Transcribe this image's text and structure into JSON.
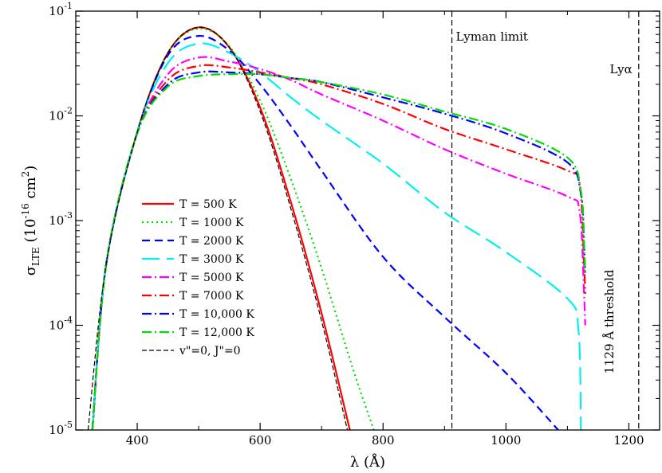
{
  "chart_data": {
    "type": "line",
    "title": "",
    "xlabel": "λ (Å)",
    "ylabel": "σ LTE (10^-16 cm^2)",
    "xlim": [
      300,
      1250
    ],
    "ylim": [
      1e-05,
      0.1
    ],
    "yscale": "log",
    "grid": false,
    "x_ticks": [
      400,
      600,
      800,
      1000,
      1200
    ],
    "x_tick_labels": [
      "400",
      "600",
      "800",
      "1000",
      "1200"
    ],
    "y_ticks": [
      1e-05,
      0.0001,
      0.001,
      0.01,
      0.1
    ],
    "y_tick_labels": [
      {
        "base": "10",
        "exp": "-5"
      },
      {
        "base": "10",
        "exp": "-4"
      },
      {
        "base": "10",
        "exp": "-3"
      },
      {
        "base": "10",
        "exp": "-2"
      },
      {
        "base": "10",
        "exp": "-1"
      }
    ],
    "legend_position": "center-left",
    "reference_lines": [
      {
        "x": 912,
        "label": "Lyman limit"
      },
      {
        "x": 1216,
        "label": "Lyα"
      }
    ],
    "annotations": [
      {
        "text": "1129 Å threshold",
        "x": 1129
      }
    ],
    "series": [
      {
        "name": "T = 500 K",
        "color": "#ff0000",
        "dash": "solid",
        "x": [
          327,
          350,
          400,
          450,
          500,
          550,
          600,
          650,
          700,
          746
        ],
        "y": [
          1e-05,
          0.0004,
          0.007,
          0.04,
          0.07,
          0.045,
          0.012,
          0.0015,
          0.00013,
          1e-05
        ]
      },
      {
        "name": "T = 1000 K",
        "color": "#00dd00",
        "dash": "dot",
        "x": [
          327,
          350,
          400,
          450,
          500,
          550,
          600,
          650,
          700,
          750,
          785
        ],
        "y": [
          1e-05,
          0.0004,
          0.007,
          0.04,
          0.068,
          0.046,
          0.014,
          0.0025,
          0.00035,
          4e-05,
          1e-05
        ]
      },
      {
        "name": "T = 2000 K",
        "color": "#0000ff",
        "dash": "dash",
        "x": [
          327,
          350,
          400,
          450,
          500,
          550,
          600,
          650,
          700,
          800,
          900,
          1000,
          1085
        ],
        "y": [
          1e-05,
          0.0004,
          0.007,
          0.038,
          0.058,
          0.042,
          0.02,
          0.008,
          0.003,
          0.00045,
          0.00012,
          3.5e-05,
          1e-05
        ]
      },
      {
        "name": "T = 3000 K",
        "color": "#00f0f0",
        "dash": "longdash",
        "x": [
          327,
          350,
          400,
          450,
          500,
          550,
          600,
          650,
          700,
          800,
          900,
          1000,
          1100,
          1118,
          1122
        ],
        "y": [
          1e-05,
          0.0004,
          0.007,
          0.032,
          0.049,
          0.04,
          0.026,
          0.015,
          0.009,
          0.0035,
          0.0012,
          0.0005,
          0.00018,
          9e-05,
          1e-05
        ]
      },
      {
        "name": "T = 5000 K",
        "color": "#ff00ff",
        "dash": "dashdot",
        "x": [
          327,
          350,
          400,
          450,
          500,
          550,
          600,
          650,
          700,
          800,
          900,
          1000,
          1100,
          1120,
          1127,
          1129
        ],
        "y": [
          1e-05,
          0.0004,
          0.0068,
          0.025,
          0.036,
          0.033,
          0.028,
          0.022,
          0.016,
          0.009,
          0.0048,
          0.0028,
          0.0017,
          0.0012,
          0.0002,
          0.0001
        ]
      },
      {
        "name": "T = 7000 K",
        "color": "#ff0000",
        "dash": "dashdot",
        "x": [
          327,
          350,
          400,
          450,
          500,
          550,
          600,
          650,
          700,
          800,
          900,
          1000,
          1100,
          1120,
          1127,
          1129
        ],
        "y": [
          1e-05,
          0.0004,
          0.0068,
          0.022,
          0.03,
          0.029,
          0.026,
          0.023,
          0.02,
          0.013,
          0.0075,
          0.0048,
          0.003,
          0.0022,
          0.0004,
          0.0002
        ]
      },
      {
        "name": "T = 10,000 K",
        "color": "#0000ff",
        "dash": "dashdot",
        "x": [
          327,
          350,
          400,
          450,
          500,
          550,
          600,
          650,
          700,
          800,
          900,
          1000,
          1100,
          1122,
          1127,
          1129
        ],
        "y": [
          1e-05,
          0.0004,
          0.0068,
          0.02,
          0.026,
          0.026,
          0.025,
          0.023,
          0.021,
          0.015,
          0.0105,
          0.0068,
          0.0036,
          0.0018,
          0.0006,
          0.0003
        ]
      },
      {
        "name": "T = 12,000 K",
        "color": "#00dd00",
        "dash": "dashdot",
        "x": [
          327,
          350,
          400,
          450,
          500,
          550,
          600,
          650,
          700,
          800,
          900,
          1000,
          1100,
          1122,
          1127,
          1129
        ],
        "y": [
          1e-05,
          0.0004,
          0.0068,
          0.019,
          0.024,
          0.025,
          0.025,
          0.023,
          0.021,
          0.016,
          0.011,
          0.0075,
          0.004,
          0.0019,
          0.0006,
          0.0003
        ]
      },
      {
        "name": "v\"=0, J\"=0",
        "color": "#000000",
        "dash": "shortdash",
        "x": [
          320,
          350,
          400,
          450,
          500,
          550,
          600,
          650,
          700,
          742
        ],
        "y": [
          1e-05,
          0.0004,
          0.007,
          0.04,
          0.07,
          0.045,
          0.011,
          0.0013,
          0.00011,
          1e-05
        ]
      }
    ]
  }
}
